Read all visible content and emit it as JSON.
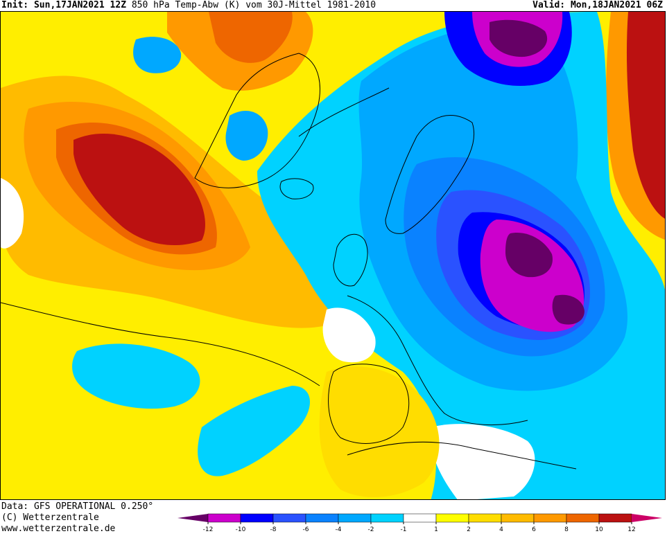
{
  "header": {
    "init_label": "Init:",
    "init_value": "Sun,17JAN2021 12Z",
    "product": "850 hPa Temp-Abw (K) vom 30J-Mittel 1981-2010",
    "valid_label": "Valid:",
    "valid_value": "Mon,18JAN2021 06Z"
  },
  "credits": {
    "line1": "Data: GFS OPERATIONAL 0.250°",
    "line2": "(C) Wetterzentrale",
    "line3": "www.wetterzentrale.de"
  },
  "legend": {
    "ticks": [
      "-12",
      "-10",
      "-8",
      "-6",
      "-4",
      "-2",
      "-1",
      "1",
      "2",
      "4",
      "6",
      "8",
      "10",
      "12"
    ],
    "colors": [
      "#cc00cc",
      "#0000ff",
      "#2a52ff",
      "#0a82ff",
      "#00a8ff",
      "#00d2ff",
      "#ffffff",
      "#ffff00",
      "#ffdd00",
      "#ffbb00",
      "#ff9900",
      "#ee6600",
      "#bb1111"
    ],
    "low_end_color": "#660066",
    "high_end_color": "#cc0066"
  },
  "map": {
    "background_color": "#ffee00",
    "coastline_color": "#000000"
  }
}
